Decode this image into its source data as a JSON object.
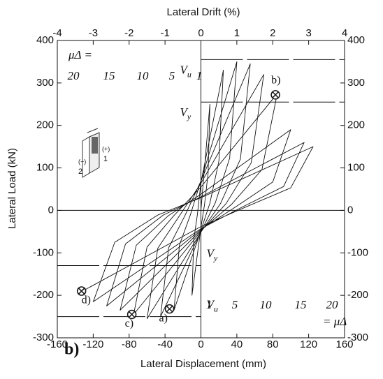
{
  "chart_data": {
    "type": "line",
    "xlabel": "Lateral Displacement (mm)",
    "ylabel": "Lateral Load (kN)",
    "x2label": "Lateral Drift (%)",
    "panel_label": "b)",
    "xlim": [
      -160,
      160
    ],
    "xticks": [
      -160,
      -120,
      -80,
      -40,
      0,
      40,
      80,
      120,
      160
    ],
    "x2lim": [
      -4,
      4
    ],
    "x2ticks": [
      -4,
      -3,
      -2,
      -1,
      0,
      1,
      2,
      3,
      4
    ],
    "ylim": [
      -300,
      400
    ],
    "yticks": [
      -300,
      -200,
      -100,
      0,
      100,
      200,
      300,
      400
    ],
    "color": "#111111",
    "x": [
      0,
      10,
      8,
      4,
      0,
      -10,
      -8,
      -4,
      0,
      25,
      20,
      10,
      0,
      -30,
      -24,
      -12,
      0,
      40,
      32,
      16,
      0,
      -45,
      -36,
      -18,
      0,
      55,
      44,
      22,
      0,
      -60,
      -48,
      -24,
      0,
      70,
      56,
      28,
      0,
      -75,
      -60,
      -30,
      0,
      85,
      68,
      34,
      0,
      -90,
      -72,
      -36,
      0,
      100,
      80,
      40,
      0,
      -105,
      -84,
      -42,
      0,
      115,
      92,
      46,
      0,
      -120,
      -96,
      -48,
      0,
      125,
      100,
      50,
      0,
      -132
    ],
    "values": [
      0,
      250,
      88,
      13,
      -40,
      -200,
      -70,
      -10,
      66,
      330,
      116,
      17,
      -47,
      -235,
      -82,
      -12,
      70,
      350,
      123,
      18,
      -50,
      -250,
      -88,
      -13,
      69,
      345,
      121,
      17,
      -51,
      -255,
      -89,
      -13,
      64,
      320,
      112,
      16,
      -49,
      -245,
      -86,
      -12,
      55,
      275,
      96,
      14,
      -47,
      -235,
      -82,
      -12,
      38,
      190,
      67,
      10,
      -45,
      -225,
      -79,
      -11,
      32,
      160,
      56,
      8,
      -43,
      -215,
      -75,
      -11,
      30,
      150,
      53,
      8,
      -38,
      -190
    ],
    "reference_lines": [
      {
        "y": 355,
        "symbol": "V",
        "subscript": "u"
      },
      {
        "y": 255,
        "symbol": "V",
        "subscript": "y"
      },
      {
        "y": -130,
        "symbol": "V",
        "subscript": "y"
      },
      {
        "y": -250,
        "symbol": "V",
        "subscript": "u"
      }
    ],
    "points": [
      {
        "x": 83,
        "y": 272,
        "label": "b)"
      },
      {
        "x": -35,
        "y": -232,
        "label": "a)"
      },
      {
        "x": -77,
        "y": -245,
        "label": "c)"
      },
      {
        "x": -133,
        "y": -190,
        "label": "d)"
      }
    ],
    "ductility_top": {
      "label": "μΔ =",
      "ticks": [
        "20",
        "15",
        "10",
        "5",
        "1"
      ]
    },
    "ductility_bottom": {
      "label": "= μΔ",
      "ticks": [
        "1",
        "5",
        "10",
        "15",
        "20"
      ]
    },
    "inset_labels": [
      "(−)",
      "2",
      "(+)",
      "1"
    ]
  }
}
